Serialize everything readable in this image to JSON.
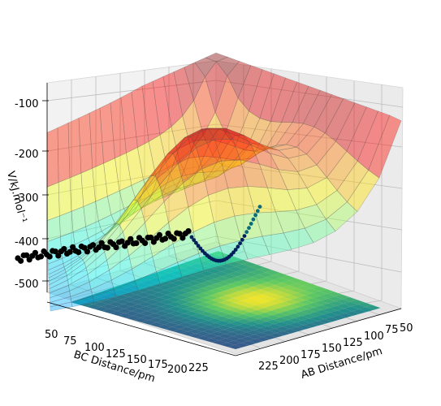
{
  "chart_data": {
    "type": "surface3d",
    "title": "",
    "zlabel": "V/kJ.mol⁻¹",
    "xlabel": "AB Distance/pm",
    "ylabel": "BC Distance/pm",
    "zticks": [
      "-100",
      "-200",
      "-300",
      "-400",
      "-500"
    ],
    "zlim": [
      -570,
      -80
    ],
    "xticks": [
      "225",
      "200",
      "175",
      "150",
      "125",
      "100",
      "75",
      "50"
    ],
    "yticks": [
      "50",
      "75",
      "100",
      "125",
      "150",
      "175",
      "200",
      "225"
    ],
    "xlim": [
      40,
      240
    ],
    "ylim": [
      40,
      240
    ],
    "surface_colormap": "jet",
    "contour_colormap": "viridis",
    "trajectory_series": [
      {
        "label": "",
        "color": "#000000"
      },
      {
        "label": "",
        "color": "#00205b"
      }
    ]
  }
}
